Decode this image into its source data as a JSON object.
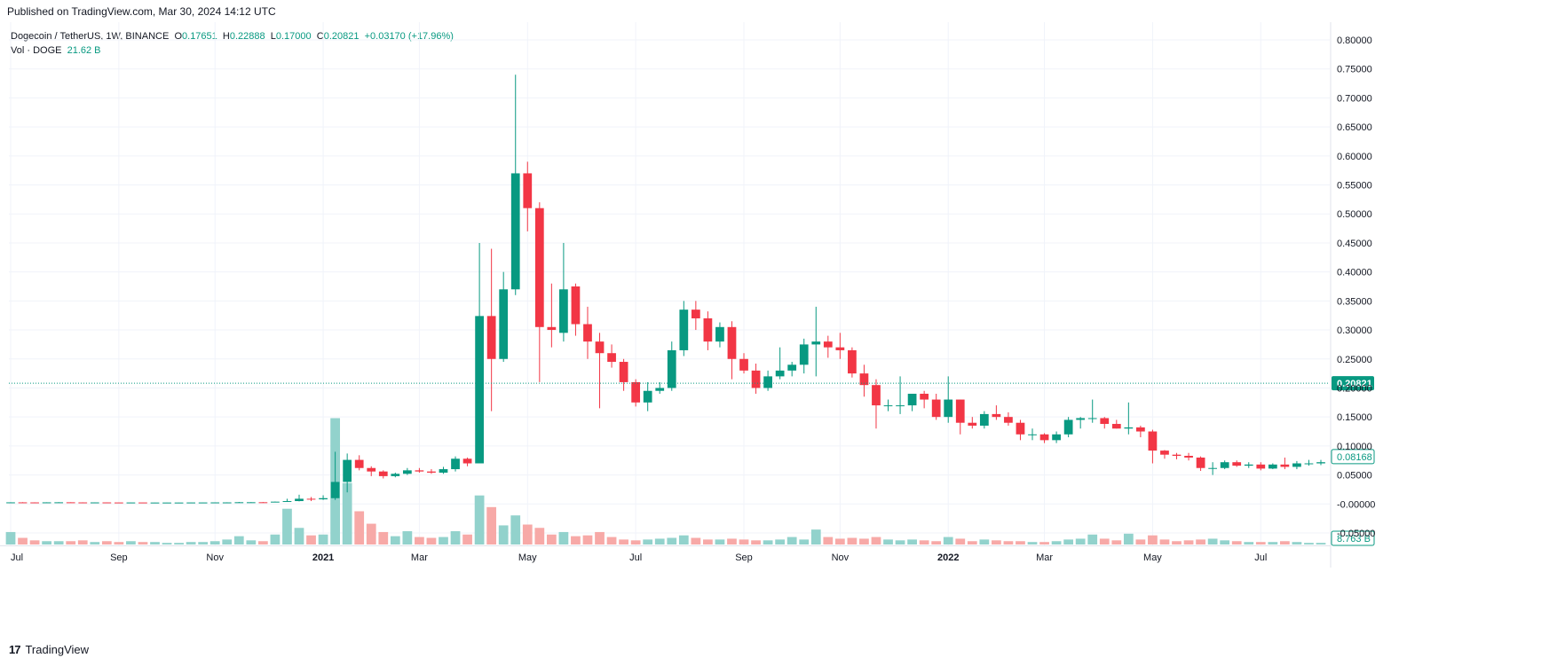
{
  "publisher_line": "Published on TradingView.com, Mar 30, 2024 14:12 UTC",
  "legend": {
    "symbol": "Dogecoin / TetherUS, 1W, BINANCE",
    "o_label": "O",
    "o_value": "0.17651",
    "h_label": "H",
    "h_value": "0.22888",
    "l_label": "L",
    "l_value": "0.17000",
    "c_label": "C",
    "c_value": "0.20821",
    "change": "+0.03170 (+17.96%)",
    "vol_label": "Vol · DOGE",
    "vol_value": "21.62 B"
  },
  "footer": {
    "logo": "17",
    "brand": "TradingView"
  },
  "colors": {
    "up": "#089981",
    "down": "#f23645",
    "vol_up": "#92d2cc",
    "vol_down": "#f7a9a7",
    "grid": "#f0f3fa",
    "price_line": "#089981"
  },
  "chart_data": {
    "type": "candlestick",
    "title": "Dogecoin / TetherUS, 1W, BINANCE",
    "y_ticks": [
      "0.80000",
      "0.75000",
      "0.70000",
      "0.65000",
      "0.60000",
      "0.55000",
      "0.50000",
      "0.45000",
      "0.40000",
      "0.35000",
      "0.30000",
      "0.25000",
      "0.20000",
      "0.15000",
      "0.10000",
      "0.05000",
      "-0.00000",
      "-0.05000"
    ],
    "ylim": [
      -0.055,
      0.815
    ],
    "x_labels": [
      {
        "label": "Jul",
        "week": 0,
        "year": false
      },
      {
        "label": "Sep",
        "week": 9,
        "year": false
      },
      {
        "label": "Nov",
        "week": 17,
        "year": false
      },
      {
        "label": "2021",
        "week": 26,
        "year": true
      },
      {
        "label": "Mar",
        "week": 34,
        "year": false
      },
      {
        "label": "May",
        "week": 43,
        "year": false
      },
      {
        "label": "Jul",
        "week": 52,
        "year": false
      },
      {
        "label": "Sep",
        "week": 61,
        "year": false
      },
      {
        "label": "Nov",
        "week": 69,
        "year": false
      },
      {
        "label": "2022",
        "week": 78,
        "year": true
      },
      {
        "label": "Mar",
        "week": 86,
        "year": false
      },
      {
        "label": "May",
        "week": 95,
        "year": false
      },
      {
        "label": "Jul",
        "week": 104,
        "year": false
      }
    ],
    "last_price_label": "0.20821",
    "last_price": 0.20821,
    "last_close_label": "0.08168",
    "last_close": 0.08168,
    "volume_label": "8.763 B",
    "volume_scale_max": 16,
    "candles": [
      [
        0.0027,
        0.003,
        0.0025,
        0.0028,
        1.5
      ],
      [
        0.0028,
        0.0031,
        0.0026,
        0.0027,
        0.8
      ],
      [
        0.0027,
        0.0029,
        0.0025,
        0.0026,
        0.5
      ],
      [
        0.0026,
        0.0029,
        0.0025,
        0.0028,
        0.4
      ],
      [
        0.0028,
        0.0031,
        0.0027,
        0.0029,
        0.4
      ],
      [
        0.0029,
        0.003,
        0.0026,
        0.0027,
        0.4
      ],
      [
        0.0027,
        0.0029,
        0.0025,
        0.0026,
        0.5
      ],
      [
        0.0026,
        0.0028,
        0.0025,
        0.0027,
        0.3
      ],
      [
        0.0027,
        0.0028,
        0.0025,
        0.0026,
        0.4
      ],
      [
        0.0026,
        0.0027,
        0.0024,
        0.0025,
        0.3
      ],
      [
        0.0025,
        0.0027,
        0.0024,
        0.0026,
        0.4
      ],
      [
        0.0026,
        0.0027,
        0.0025,
        0.0025,
        0.3
      ],
      [
        0.0025,
        0.0026,
        0.0024,
        0.0025,
        0.3
      ],
      [
        0.0025,
        0.0026,
        0.0024,
        0.0025,
        0.2
      ],
      [
        0.0025,
        0.0026,
        0.0024,
        0.0025,
        0.2
      ],
      [
        0.0025,
        0.0027,
        0.0024,
        0.0026,
        0.3
      ],
      [
        0.0026,
        0.0027,
        0.0025,
        0.0026,
        0.3
      ],
      [
        0.0026,
        0.0028,
        0.0025,
        0.0027,
        0.4
      ],
      [
        0.0027,
        0.0029,
        0.0026,
        0.0027,
        0.6
      ],
      [
        0.0027,
        0.0035,
        0.0026,
        0.003,
        1.0
      ],
      [
        0.003,
        0.0032,
        0.0028,
        0.003,
        0.5
      ],
      [
        0.003,
        0.0033,
        0.0027,
        0.0029,
        0.4
      ],
      [
        0.0029,
        0.0042,
        0.0028,
        0.004,
        1.2
      ],
      [
        0.004,
        0.009,
        0.0038,
        0.005,
        4.3
      ],
      [
        0.005,
        0.016,
        0.0045,
        0.009,
        2.0
      ],
      [
        0.009,
        0.012,
        0.005,
        0.008,
        1.1
      ],
      [
        0.008,
        0.015,
        0.007,
        0.01,
        1.2
      ],
      [
        0.01,
        0.09,
        0.007,
        0.038,
        15.2
      ],
      [
        0.038,
        0.087,
        0.02,
        0.076,
        7.4
      ],
      [
        0.076,
        0.084,
        0.058,
        0.062,
        4.0
      ],
      [
        0.062,
        0.065,
        0.048,
        0.056,
        2.5
      ],
      [
        0.056,
        0.058,
        0.044,
        0.048,
        1.5
      ],
      [
        0.048,
        0.054,
        0.046,
        0.052,
        1.0
      ],
      [
        0.052,
        0.062,
        0.05,
        0.058,
        1.6
      ],
      [
        0.058,
        0.062,
        0.054,
        0.056,
        0.9
      ],
      [
        0.056,
        0.06,
        0.052,
        0.054,
        0.8
      ],
      [
        0.054,
        0.064,
        0.052,
        0.06,
        0.9
      ],
      [
        0.06,
        0.082,
        0.056,
        0.078,
        1.6
      ],
      [
        0.078,
        0.08,
        0.065,
        0.07,
        1.2
      ],
      [
        0.07,
        0.45,
        0.07,
        0.324,
        5.9
      ],
      [
        0.324,
        0.44,
        0.16,
        0.25,
        4.5
      ],
      [
        0.25,
        0.4,
        0.245,
        0.37,
        2.3
      ],
      [
        0.37,
        0.74,
        0.36,
        0.57,
        3.5
      ],
      [
        0.57,
        0.59,
        0.47,
        0.51,
        2.4
      ],
      [
        0.51,
        0.52,
        0.21,
        0.305,
        2.0
      ],
      [
        0.305,
        0.38,
        0.27,
        0.3,
        1.2
      ],
      [
        0.295,
        0.45,
        0.28,
        0.37,
        1.5
      ],
      [
        0.375,
        0.38,
        0.29,
        0.31,
        1.0
      ],
      [
        0.31,
        0.34,
        0.25,
        0.28,
        1.1
      ],
      [
        0.28,
        0.295,
        0.165,
        0.26,
        1.5
      ],
      [
        0.26,
        0.275,
        0.235,
        0.245,
        0.9
      ],
      [
        0.245,
        0.25,
        0.195,
        0.21,
        0.6
      ],
      [
        0.21,
        0.215,
        0.168,
        0.175,
        0.5
      ],
      [
        0.175,
        0.21,
        0.16,
        0.195,
        0.6
      ],
      [
        0.195,
        0.21,
        0.19,
        0.2,
        0.7
      ],
      [
        0.2,
        0.28,
        0.195,
        0.265,
        0.8
      ],
      [
        0.265,
        0.35,
        0.255,
        0.335,
        1.1
      ],
      [
        0.335,
        0.35,
        0.3,
        0.32,
        0.8
      ],
      [
        0.32,
        0.332,
        0.265,
        0.28,
        0.6
      ],
      [
        0.28,
        0.313,
        0.27,
        0.305,
        0.6
      ],
      [
        0.305,
        0.315,
        0.215,
        0.25,
        0.7
      ],
      [
        0.25,
        0.26,
        0.225,
        0.23,
        0.6
      ],
      [
        0.23,
        0.242,
        0.19,
        0.2,
        0.5
      ],
      [
        0.2,
        0.23,
        0.195,
        0.22,
        0.5
      ],
      [
        0.22,
        0.27,
        0.215,
        0.23,
        0.6
      ],
      [
        0.23,
        0.245,
        0.22,
        0.24,
        0.9
      ],
      [
        0.24,
        0.285,
        0.225,
        0.275,
        0.6
      ],
      [
        0.275,
        0.34,
        0.22,
        0.28,
        1.8
      ],
      [
        0.28,
        0.29,
        0.252,
        0.27,
        0.9
      ],
      [
        0.27,
        0.295,
        0.25,
        0.265,
        0.7
      ],
      [
        0.265,
        0.27,
        0.218,
        0.225,
        0.8
      ],
      [
        0.225,
        0.24,
        0.185,
        0.205,
        0.7
      ],
      [
        0.205,
        0.215,
        0.13,
        0.17,
        0.9
      ],
      [
        0.17,
        0.18,
        0.16,
        0.17,
        0.6
      ],
      [
        0.17,
        0.22,
        0.155,
        0.17,
        0.5
      ],
      [
        0.17,
        0.185,
        0.16,
        0.19,
        0.6
      ],
      [
        0.19,
        0.195,
        0.165,
        0.18,
        0.5
      ],
      [
        0.18,
        0.19,
        0.145,
        0.15,
        0.4
      ],
      [
        0.15,
        0.22,
        0.14,
        0.18,
        0.9
      ],
      [
        0.18,
        0.18,
        0.12,
        0.14,
        0.7
      ],
      [
        0.14,
        0.15,
        0.13,
        0.135,
        0.4
      ],
      [
        0.135,
        0.16,
        0.13,
        0.155,
        0.6
      ],
      [
        0.155,
        0.17,
        0.145,
        0.15,
        0.5
      ],
      [
        0.15,
        0.158,
        0.135,
        0.14,
        0.4
      ],
      [
        0.14,
        0.145,
        0.11,
        0.12,
        0.4
      ],
      [
        0.12,
        0.13,
        0.11,
        0.12,
        0.3
      ],
      [
        0.12,
        0.122,
        0.105,
        0.11,
        0.3
      ],
      [
        0.11,
        0.125,
        0.105,
        0.12,
        0.4
      ],
      [
        0.12,
        0.15,
        0.115,
        0.145,
        0.6
      ],
      [
        0.145,
        0.15,
        0.13,
        0.148,
        0.7
      ],
      [
        0.148,
        0.18,
        0.14,
        0.148,
        1.2
      ],
      [
        0.148,
        0.15,
        0.13,
        0.138,
        0.7
      ],
      [
        0.138,
        0.145,
        0.13,
        0.13,
        0.5
      ],
      [
        0.13,
        0.175,
        0.12,
        0.132,
        1.3
      ],
      [
        0.132,
        0.135,
        0.115,
        0.125,
        0.6
      ],
      [
        0.125,
        0.128,
        0.07,
        0.092,
        1.1
      ],
      [
        0.092,
        0.093,
        0.078,
        0.085,
        0.6
      ],
      [
        0.085,
        0.088,
        0.077,
        0.083,
        0.4
      ],
      [
        0.083,
        0.088,
        0.075,
        0.08,
        0.5
      ],
      [
        0.08,
        0.082,
        0.057,
        0.062,
        0.6
      ],
      [
        0.062,
        0.072,
        0.05,
        0.062,
        0.7
      ],
      [
        0.062,
        0.075,
        0.06,
        0.072,
        0.5
      ],
      [
        0.072,
        0.075,
        0.064,
        0.066,
        0.4
      ],
      [
        0.066,
        0.072,
        0.062,
        0.068,
        0.3
      ],
      [
        0.068,
        0.072,
        0.058,
        0.061,
        0.3
      ],
      [
        0.061,
        0.07,
        0.06,
        0.068,
        0.3
      ],
      [
        0.068,
        0.08,
        0.06,
        0.064,
        0.4
      ],
      [
        0.064,
        0.074,
        0.06,
        0.07,
        0.3
      ],
      [
        0.07,
        0.076,
        0.066,
        0.07,
        0.2
      ],
      [
        0.07,
        0.076,
        0.067,
        0.072,
        0.2
      ]
    ]
  }
}
